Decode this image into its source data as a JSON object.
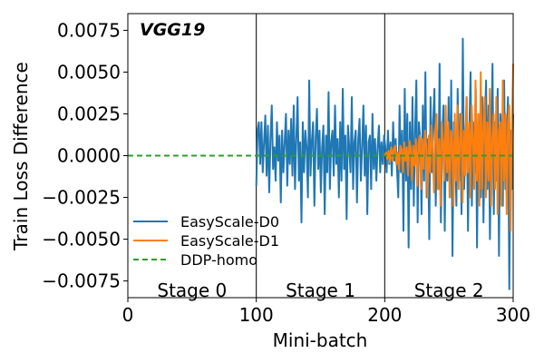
{
  "chart_data": {
    "type": "line",
    "title": "VGG19",
    "xlabel": "Mini-batch",
    "ylabel": "Train Loss Difference",
    "xlim": [
      0,
      300
    ],
    "ylim": [
      -0.0085,
      0.0085
    ],
    "xticks": [
      0,
      100,
      200,
      300
    ],
    "yticks": [
      -0.0075,
      -0.005,
      -0.0025,
      0.0,
      0.0025,
      0.005,
      0.0075
    ],
    "xtick_labels": [
      "0",
      "100",
      "200",
      "300"
    ],
    "ytick_labels": [
      "−0.0075",
      "−0.0050",
      "−0.0025",
      "0.0000",
      "0.0025",
      "0.0050",
      "0.0075"
    ],
    "grid": false,
    "legend_position": "lower-left",
    "stage_boundaries": [
      100,
      200
    ],
    "stages": [
      {
        "label": "Stage 0",
        "x_center": 50
      },
      {
        "label": "Stage 1",
        "x_center": 150
      },
      {
        "label": "Stage 2",
        "x_center": 250
      }
    ],
    "series": [
      {
        "name": "EasyScale-D0",
        "color": "#1f77b4",
        "style": "solid",
        "x_start": 100,
        "x_end": 300,
        "values": [
          -0.0018,
          0.0015,
          0.002,
          -0.0005,
          0.002,
          -0.001,
          0.0008,
          0.0024,
          -0.0012,
          0.0018,
          -0.0022,
          0.001,
          0.003,
          -0.0008,
          0.0005,
          -0.0015,
          0.002,
          -0.0003,
          0.0012,
          -0.0028,
          0.0015,
          -0.001,
          0.0008,
          0.0025,
          -0.0018,
          0.0015,
          -0.0005,
          0.0022,
          -0.0012,
          0.003,
          -0.002,
          0.001,
          0.0035,
          -0.0015,
          0.0008,
          -0.004,
          0.002,
          -0.001,
          0.0015,
          0.0005,
          -0.0025,
          0.0045,
          -0.0012,
          0.0008,
          0.002,
          -0.003,
          0.001,
          0.0028,
          -0.0008,
          0.0015,
          -0.0022,
          0.0005,
          0.0018,
          -0.0035,
          0.0012,
          -0.001,
          0.0038,
          -0.002,
          0.0008,
          0.0015,
          -0.0012,
          0.003,
          -0.0005,
          0.001,
          -0.0025,
          0.002,
          -0.0015,
          0.004,
          -0.0008,
          0.0012,
          -0.0038,
          0.0018,
          0.0005,
          -0.001,
          0.0035,
          -0.002,
          0.0008,
          0.0015,
          -0.0028,
          0.001,
          0.0022,
          -0.0015,
          0.0005,
          0.003,
          -0.0012,
          0.0018,
          -0.0035,
          0.0008,
          0.0012,
          -0.002,
          0.0025,
          -0.0008,
          0.001,
          -0.0015,
          0.0005,
          0.0018,
          -0.001,
          0.0008,
          -0.0005,
          0.0012,
          0.0005,
          -0.001,
          0.0015,
          -0.0005,
          0.0008,
          -0.0012,
          0.002,
          -0.0003,
          0.001,
          -0.0008,
          -0.0025,
          0.003,
          -0.001,
          0.0015,
          -0.0045,
          0.004,
          -0.0015,
          0.0025,
          -0.0055,
          0.002,
          -0.002,
          0.0035,
          -0.003,
          0.0015,
          0.0045,
          -0.004,
          0.002,
          0.001,
          -0.0035,
          0.003,
          -0.0015,
          0.005,
          -0.0025,
          0.001,
          -0.005,
          0.0035,
          -0.001,
          0.002,
          0.004,
          -0.003,
          0.0015,
          -0.002,
          0.0055,
          -0.004,
          0.001,
          0.003,
          -0.0045,
          0.002,
          -0.0015,
          0.0035,
          -0.0025,
          0.0045,
          -0.006,
          0.002,
          0.001,
          -0.003,
          0.004,
          -0.0015,
          0.0025,
          -0.0035,
          0.007,
          -0.002,
          0.001,
          0.0035,
          -0.0045,
          0.0015,
          0.005,
          -0.003,
          0.002,
          -0.001,
          0.004,
          -0.0055,
          0.0025,
          0.001,
          -0.0025,
          0.0035,
          -0.004,
          0.0015,
          0.0045,
          -0.002,
          0.003,
          -0.005,
          0.001,
          0.0055,
          -0.0035,
          0.002,
          -0.0015,
          0.004,
          -0.006,
          0.0025,
          0.0015,
          -0.003,
          0.0045,
          -0.002,
          0.001,
          0.0035,
          -0.008,
          0.0015,
          -0.002,
          0.0025
        ]
      },
      {
        "name": "EasyScale-D1",
        "color": "#ff7f0e",
        "style": "solid",
        "x_start": 200,
        "x_end": 300,
        "values": [
          0.0,
          0.0002,
          -0.0002,
          0.0003,
          -0.0004,
          0.0005,
          -0.0003,
          0.0004,
          0.0006,
          -0.0005,
          0.0002,
          -0.0008,
          0.0006,
          0.0004,
          -0.001,
          0.0008,
          -0.0003,
          0.0005,
          -0.0012,
          0.0009,
          0.0005,
          -0.0015,
          0.0006,
          -0.0006,
          0.001,
          -0.0018,
          0.0008,
          0.0012,
          -0.002,
          0.001,
          -0.0008,
          0.0015,
          0.0006,
          -0.0025,
          0.0012,
          -0.001,
          0.0018,
          0.0005,
          -0.0022,
          0.0015,
          0.0025,
          -0.002,
          0.001,
          -0.003,
          0.002,
          0.0008,
          -0.0015,
          0.003,
          -0.001,
          0.002,
          -0.0025,
          0.0015,
          0.001,
          -0.003,
          0.0025,
          -0.0015,
          0.003,
          -0.002,
          0.001,
          0.0025,
          -0.0028,
          0.0015,
          -0.0012,
          0.0035,
          -0.001,
          0.002,
          -0.0025,
          0.003,
          0.001,
          -0.002,
          0.0045,
          -0.0015,
          0.0025,
          -0.003,
          0.005,
          -0.002,
          0.0015,
          0.0035,
          -0.0025,
          0.002,
          -0.0015,
          0.004,
          -0.003,
          0.001,
          0.0025,
          -0.002,
          0.0035,
          -0.0035,
          0.0015,
          0.002,
          -0.003,
          0.0045,
          -0.0015,
          0.0025,
          -0.0035,
          0.002,
          0.003,
          -0.0045,
          0.0015,
          0.0055
        ]
      },
      {
        "name": "DDP-homo",
        "color": "#2ca02c",
        "style": "dashed",
        "x_start": 0,
        "x_end": 300,
        "values": [
          0.0,
          0.0
        ]
      }
    ]
  }
}
